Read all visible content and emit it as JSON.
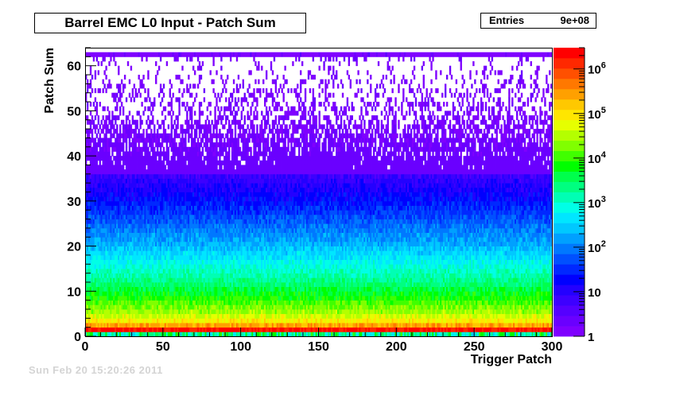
{
  "canvas": {
    "background": "#ffffff"
  },
  "stats": {
    "entries_label": "Entries",
    "entries_value": "9e+08"
  },
  "footer": {
    "timestamp": "Sun Feb 20 15:20:26 2011"
  },
  "chart_data": {
    "type": "heatmap",
    "title": "Barrel EMC L0 Input - Patch Sum",
    "xlabel": "Trigger Patch",
    "ylabel": "Patch Sum",
    "xlim": [
      0,
      300
    ],
    "ylim": [
      0,
      64
    ],
    "x_ticks": [
      0,
      50,
      100,
      150,
      200,
      250,
      300
    ],
    "y_ticks": [
      0,
      10,
      20,
      30,
      40,
      50,
      60
    ],
    "z_scale": "log",
    "zlim": [
      1,
      3000000
    ],
    "z_ticks": [
      {
        "value": 1,
        "label": "1",
        "sup": ""
      },
      {
        "value": 10,
        "label": "10",
        "sup": ""
      },
      {
        "value": 100,
        "label": "10",
        "sup": "2"
      },
      {
        "value": 1000,
        "label": "10",
        "sup": "3"
      },
      {
        "value": 10000,
        "label": "10",
        "sup": "4"
      },
      {
        "value": 100000,
        "label": "10",
        "sup": "5"
      },
      {
        "value": 1000000,
        "label": "10",
        "sup": "6"
      }
    ],
    "palette": [
      "#7f00ff",
      "#6a00ff",
      "#5500ff",
      "#3d00ff",
      "#2400ff",
      "#0000ff",
      "#0028ff",
      "#0050ff",
      "#0078ff",
      "#00a0ff",
      "#00c8ff",
      "#00e6ff",
      "#00ffe6",
      "#00ffb4",
      "#00ff80",
      "#00ff4c",
      "#00ff00",
      "#40ff00",
      "#80ff00",
      "#b4ff00",
      "#e6ff00",
      "#ffe600",
      "#ffc800",
      "#ffa000",
      "#ff7800",
      "#ff5000",
      "#ff2800",
      "#ff0000"
    ],
    "profile": [
      {
        "patch_sum": 0,
        "log10_counts": 3.0
      },
      {
        "patch_sum": 1,
        "log10_counts": 6.3
      },
      {
        "patch_sum": 2,
        "log10_counts": 5.4
      },
      {
        "patch_sum": 3,
        "log10_counts": 4.9
      },
      {
        "patch_sum": 5,
        "log10_counts": 4.4
      },
      {
        "patch_sum": 8,
        "log10_counts": 3.9
      },
      {
        "patch_sum": 12,
        "log10_counts": 3.3
      },
      {
        "patch_sum": 16,
        "log10_counts": 2.8
      },
      {
        "patch_sum": 20,
        "log10_counts": 2.3
      },
      {
        "patch_sum": 25,
        "log10_counts": 1.8
      },
      {
        "patch_sum": 30,
        "log10_counts": 1.3
      },
      {
        "patch_sum": 35,
        "log10_counts": 0.85
      },
      {
        "patch_sum": 40,
        "log10_counts": 0.45
      },
      {
        "patch_sum": 45,
        "log10_counts": 0.2
      },
      {
        "patch_sum": 50,
        "log10_counts": 0.1
      },
      {
        "patch_sum": 55,
        "log10_counts": 0.05
      },
      {
        "patch_sum": 60,
        "log10_counts": 0.02
      },
      {
        "patch_sum": 62,
        "log10_counts": 0.3
      },
      {
        "patch_sum": 63,
        "log10_counts": -1.0
      }
    ],
    "overflow_row_patch_sum": 62
  }
}
